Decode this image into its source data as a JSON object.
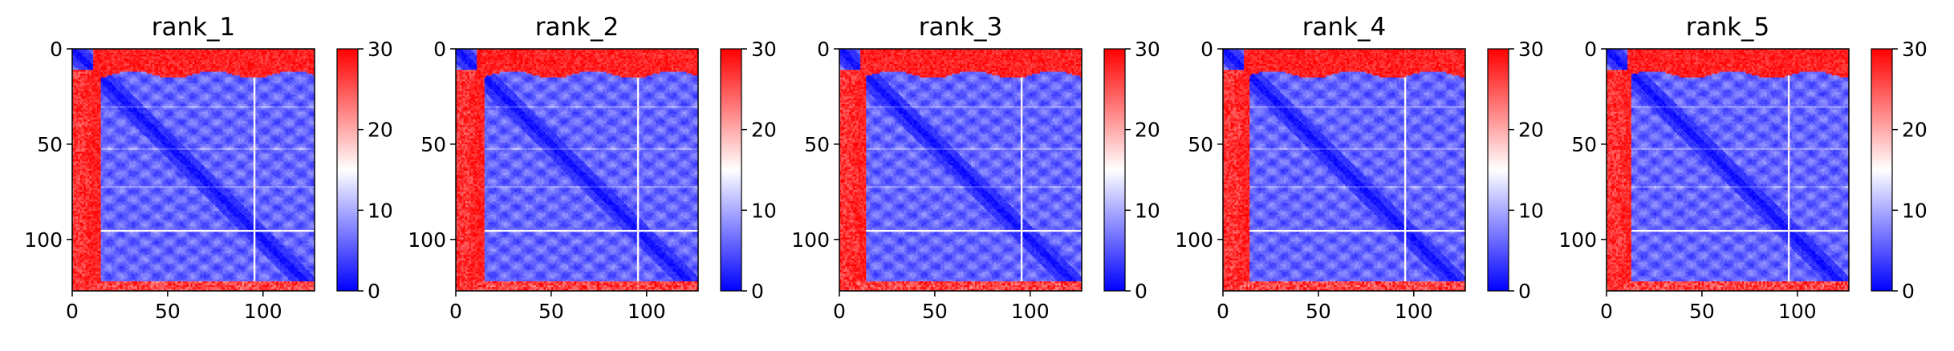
{
  "chart_data": [
    {
      "type": "heatmap",
      "title": "rank_1",
      "x_ticks": [
        "0",
        "50",
        "100"
      ],
      "y_ticks": [
        "0",
        "50",
        "100"
      ],
      "x_range": [
        0,
        127
      ],
      "y_range": [
        0,
        127
      ],
      "y_direction": "top-to-bottom",
      "colormap": "bwr",
      "colorbar": {
        "ticks": [
          "0",
          "10",
          "20",
          "30"
        ],
        "range": [
          0,
          30
        ]
      },
      "grid": false
    },
    {
      "type": "heatmap",
      "title": "rank_2",
      "x_ticks": [
        "0",
        "50",
        "100"
      ],
      "y_ticks": [
        "0",
        "50",
        "100"
      ],
      "x_range": [
        0,
        127
      ],
      "y_range": [
        0,
        127
      ],
      "y_direction": "top-to-bottom",
      "colormap": "bwr",
      "colorbar": {
        "ticks": [
          "0",
          "10",
          "20",
          "30"
        ],
        "range": [
          0,
          30
        ]
      },
      "grid": false
    },
    {
      "type": "heatmap",
      "title": "rank_3",
      "x_ticks": [
        "0",
        "50",
        "100"
      ],
      "y_ticks": [
        "0",
        "50",
        "100"
      ],
      "x_range": [
        0,
        127
      ],
      "y_range": [
        0,
        127
      ],
      "y_direction": "top-to-bottom",
      "colormap": "bwr",
      "colorbar": {
        "ticks": [
          "0",
          "10",
          "20",
          "30"
        ],
        "range": [
          0,
          30
        ]
      },
      "grid": false
    },
    {
      "type": "heatmap",
      "title": "rank_4",
      "x_ticks": [
        "0",
        "50",
        "100"
      ],
      "y_ticks": [
        "0",
        "50",
        "100"
      ],
      "x_range": [
        0,
        127
      ],
      "y_range": [
        0,
        127
      ],
      "y_direction": "top-to-bottom",
      "colormap": "bwr",
      "colorbar": {
        "ticks": [
          "0",
          "10",
          "20",
          "30"
        ],
        "range": [
          0,
          30
        ]
      },
      "grid": false
    },
    {
      "type": "heatmap",
      "title": "rank_5",
      "x_ticks": [
        "0",
        "50",
        "100"
      ],
      "y_ticks": [
        "0",
        "50",
        "100"
      ],
      "x_range": [
        0,
        127
      ],
      "y_range": [
        0,
        127
      ],
      "y_direction": "top-to-bottom",
      "colormap": "bwr",
      "colorbar": {
        "ticks": [
          "0",
          "10",
          "20",
          "30"
        ],
        "range": [
          0,
          30
        ]
      },
      "grid": false
    }
  ],
  "colors": {
    "low": "#0000ff",
    "mid": "#ffffff",
    "high": "#ff0000"
  }
}
